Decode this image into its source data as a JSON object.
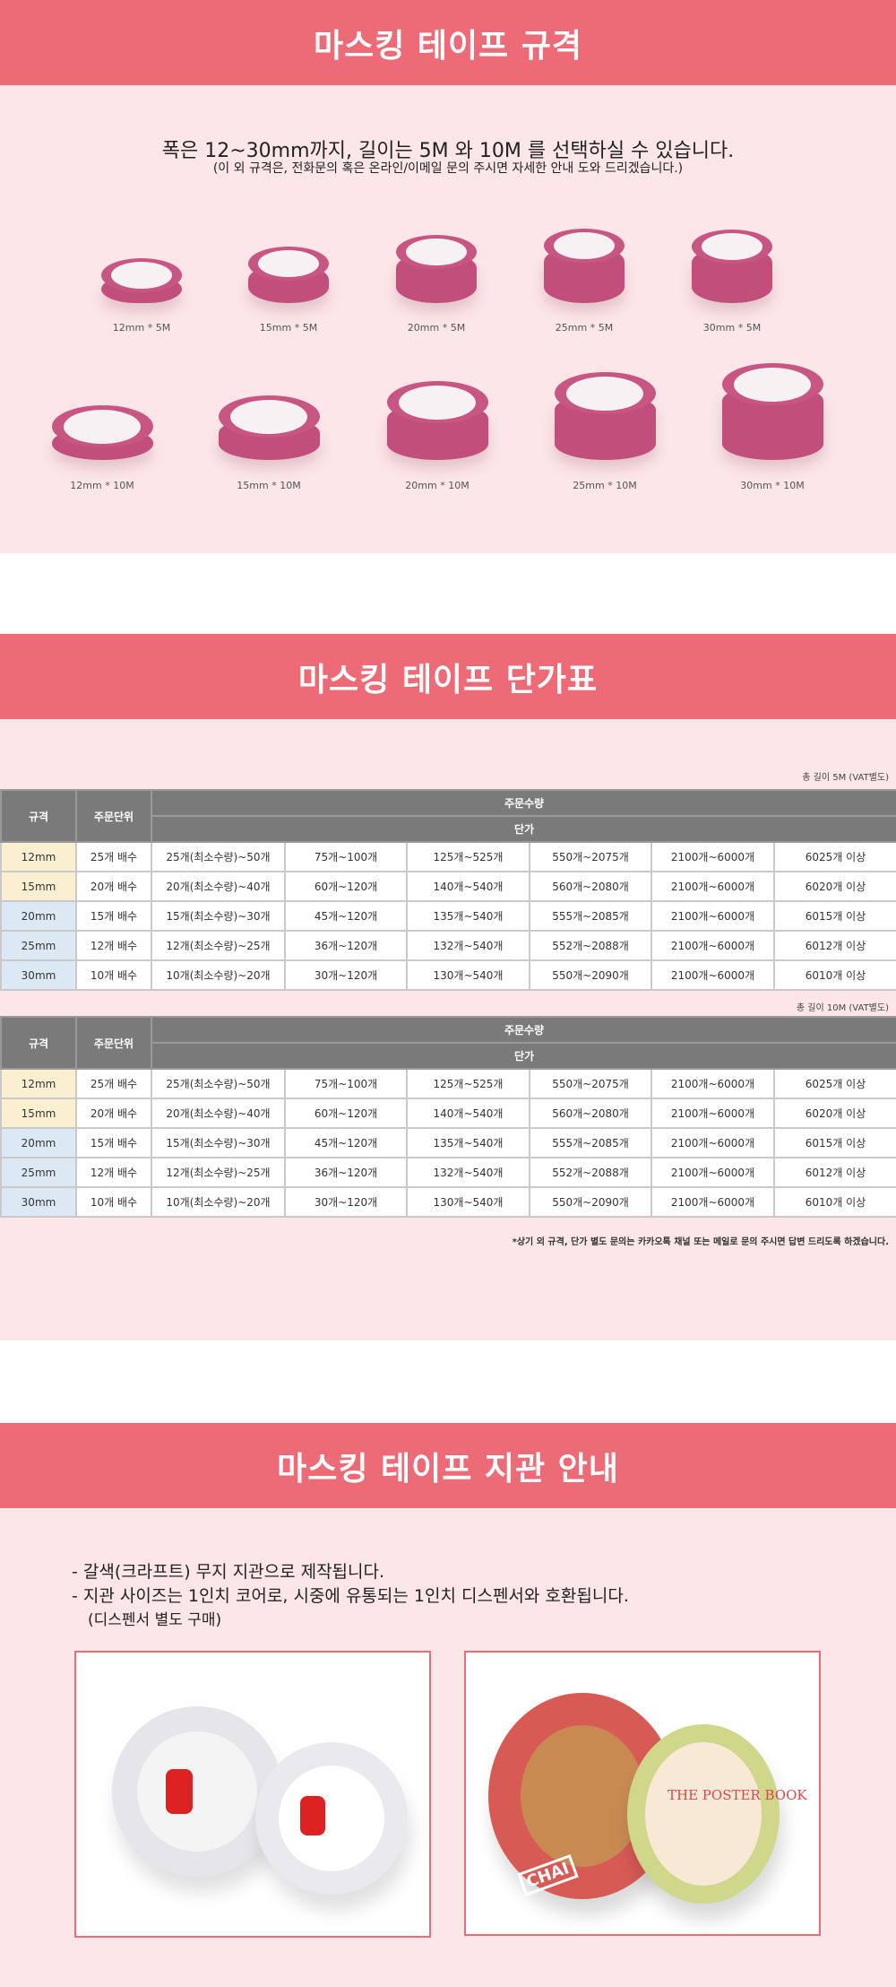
{
  "colors": {
    "header": "#ec6b77",
    "background": "#fce6e8",
    "tape": "#c24e7c",
    "table_header": "#7a7a7a",
    "row_yellow": "#faefd0",
    "row_blue": "#dce8f3"
  },
  "spec": {
    "title": "마스킹 테이프 규격",
    "intro": "폭은 12~30mm까지, 길이는 5M 와 10M 를 선택하실 수 있습니다.",
    "sub": "(이 외 규격은, 전화문의 혹은 온라인/이메일 문의 주시면 자세한 안내 도와 드리겠습니다.)",
    "row5m": [
      "12mm * 5M",
      "15mm * 5M",
      "20mm * 5M",
      "25mm * 5M",
      "30mm * 5M"
    ],
    "row10m": [
      "12mm * 10M",
      "15mm * 10M",
      "20mm * 10M",
      "25mm * 10M",
      "30mm * 10M"
    ]
  },
  "price": {
    "title": "마스킹 테이프 단가표",
    "headers": {
      "spec": "규격",
      "unit": "주문단위",
      "qty": "주문수량",
      "price": "단가"
    },
    "tables": [
      {
        "caption": "총 길이 5M (VAT별도)",
        "rows": [
          [
            "12mm",
            "25개 배수",
            "25개(최소수량)~50개",
            "75개~100개",
            "125개~525개",
            "550개~2075개",
            "2100개~6000개",
            "6025개 이상"
          ],
          [
            "15mm",
            "20개 배수",
            "20개(최소수량)~40개",
            "60개~120개",
            "140개~540개",
            "560개~2080개",
            "2100개~6000개",
            "6020개 이상"
          ],
          [
            "20mm",
            "15개 배수",
            "15개(최소수량)~30개",
            "45개~120개",
            "135개~540개",
            "555개~2085개",
            "2100개~6000개",
            "6015개 이상"
          ],
          [
            "25mm",
            "12개 배수",
            "12개(최소수량)~25개",
            "36개~120개",
            "132개~540개",
            "552개~2088개",
            "2100개~6000개",
            "6012개 이상"
          ],
          [
            "30mm",
            "10개 배수",
            "10개(최소수량)~20개",
            "30개~120개",
            "130개~540개",
            "550개~2090개",
            "2100개~6000개",
            "6010개 이상"
          ]
        ]
      },
      {
        "caption": "총 길이 10M (VAT별도)",
        "rows": [
          [
            "12mm",
            "25개 배수",
            "25개(최소수량)~50개",
            "75개~100개",
            "125개~525개",
            "550개~2075개",
            "2100개~6000개",
            "6025개 이상"
          ],
          [
            "15mm",
            "20개 배수",
            "20개(최소수량)~40개",
            "60개~120개",
            "140개~540개",
            "560개~2080개",
            "2100개~6000개",
            "6020개 이상"
          ],
          [
            "20mm",
            "15개 배수",
            "15개(최소수량)~30개",
            "45개~120개",
            "135개~540개",
            "555개~2085개",
            "2100개~6000개",
            "6015개 이상"
          ],
          [
            "25mm",
            "12개 배수",
            "12개(최소수량)~25개",
            "36개~120개",
            "132개~540개",
            "552개~2088개",
            "2100개~6000개",
            "6012개 이상"
          ],
          [
            "30mm",
            "10개 배수",
            "10개(최소수량)~20개",
            "30개~120개",
            "130개~540개",
            "550개~2090개",
            "2100개~6000개",
            "6010개 이상"
          ]
        ]
      }
    ],
    "footnote": "*상기 외 규격, 단가 별도 문의는 카카오톡 채널 또는 메일로 문의 주시면 답변 드리도록 하겠습니다."
  },
  "core": {
    "title": "마스킹 테이프 지관 안내",
    "lines": [
      "- 갈색(크라프트) 무지 지관으로 제작됩니다.",
      "- 지관 사이즈는 1인치 코어로, 시중에 유통되는 1인치 디스펜서와 호환됩니다.",
      "(디스펜서 별도 구매)"
    ],
    "photo_texts": [
      "CHAI",
      "THE POSTER BOOK"
    ]
  }
}
